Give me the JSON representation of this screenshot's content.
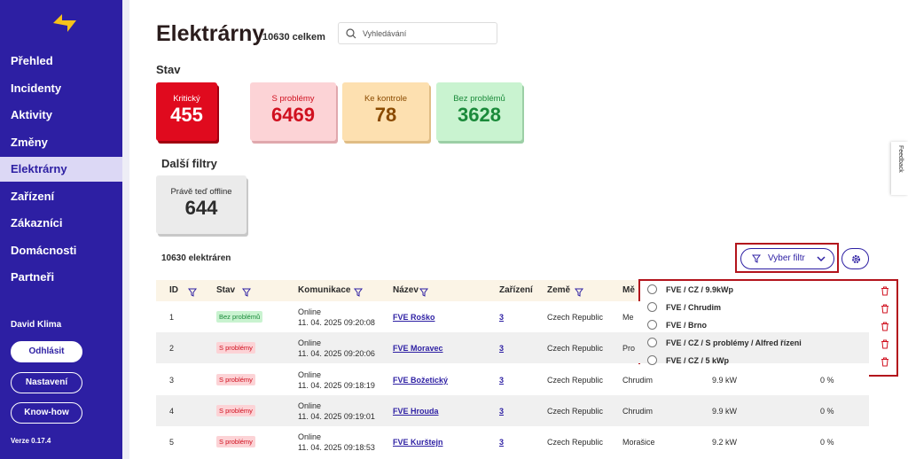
{
  "sidebar": {
    "nav": [
      "Přehled",
      "Incidenty",
      "Aktivity",
      "Změny",
      "Elektrárny",
      "Zařízení",
      "Zákazníci",
      "Domácnosti",
      "Partneři"
    ],
    "active": 4,
    "user": "David Klima",
    "buttons": [
      "Odhlásit",
      "Nastavení",
      "Know-how"
    ],
    "version": "Verze 0.17.4"
  },
  "header": {
    "title": "Elektrárny",
    "total": "10630 celkem",
    "search_placeholder": "Vyhledávání"
  },
  "status": {
    "title": "Stav",
    "cards": [
      {
        "label": "Kritický",
        "value": 455
      },
      {
        "label": "S problémy",
        "value": 6469
      },
      {
        "label": "Ke kontrole",
        "value": 78
      },
      {
        "label": "Bez problémů",
        "value": 3628
      }
    ]
  },
  "filters": {
    "title": "Další filtry",
    "cards": [
      {
        "label": "Právě teď offline",
        "value": 644
      }
    ]
  },
  "list": {
    "count": "10630 elektráren",
    "filter_button": "Vyber filtr"
  },
  "table": {
    "columns": [
      "ID",
      "Stav",
      "Komunikace",
      "Název",
      "Zařízení",
      "Země",
      "Mě"
    ],
    "rows": [
      {
        "id": 1,
        "status": "Bez problémů",
        "comm_state": "Online",
        "comm_time": "11. 04. 2025 09:20:08",
        "name": "FVE Roško",
        "devices": 3,
        "country": "Czech Republic",
        "city": "Me"
      },
      {
        "id": 2,
        "status": "S problémy",
        "comm_state": "Online",
        "comm_time": "11. 04. 2025 09:20:06",
        "name": "FVE Moravec",
        "devices": 3,
        "country": "Czech Republic",
        "city": "Pro"
      },
      {
        "id": 3,
        "status": "S problémy",
        "comm_state": "Online",
        "comm_time": "11. 04. 2025 09:18:19",
        "name": "FVE Božetický",
        "devices": 3,
        "country": "Czech Republic",
        "city": "Chrudim",
        "power": "9.9 kW",
        "pct": "0 %"
      },
      {
        "id": 4,
        "status": "S problémy",
        "comm_state": "Online",
        "comm_time": "11. 04. 2025 09:19:01",
        "name": "FVE Hrouda",
        "devices": 3,
        "country": "Czech Republic",
        "city": "Chrudim",
        "power": "9.9 kW",
        "pct": "0 %"
      },
      {
        "id": 5,
        "status": "S problémy",
        "comm_state": "Online",
        "comm_time": "11. 04. 2025 09:18:53",
        "name": "FVE Kurštejn",
        "devices": 3,
        "country": "Czech Republic",
        "city": "Morašice",
        "power": "9.2 kW",
        "pct": "0 %"
      }
    ]
  },
  "dropdown": {
    "items": [
      "FVE / CZ / 9.9kWp",
      "FVE / Chrudim",
      "FVE / Brno",
      "FVE / CZ / S problémy / Alfred řízeni",
      "FVE / CZ / 5 kWp"
    ]
  },
  "feedback": "Feedback"
}
